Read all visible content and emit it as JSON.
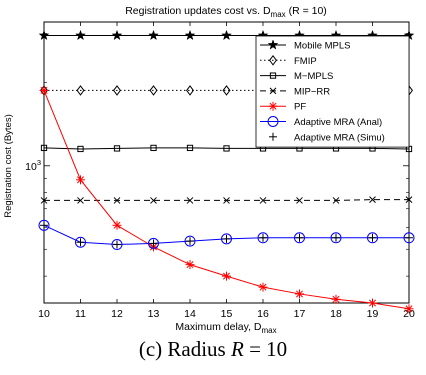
{
  "chart_data": {
    "type": "line",
    "title": "Registration updates cost vs. D",
    "title_sub": "max",
    "title_suffix": " (R = 10)",
    "xlabel": "Maximum delay, D",
    "xlabel_sub": "max",
    "ylabel": "Registration cost (Bytes)",
    "y_scale": "log",
    "y_tick_base": "10",
    "y_tick_exp": "3",
    "x": [
      10,
      11,
      12,
      13,
      14,
      15,
      16,
      17,
      18,
      19,
      20
    ],
    "x_ticks": [
      "10",
      "11",
      "12",
      "13",
      "14",
      "15",
      "16",
      "17",
      "18",
      "19",
      "20"
    ],
    "xlim": [
      10,
      20
    ],
    "ylim": [
      320,
      3300
    ],
    "legend_position": "top-right",
    "series": [
      {
        "name": "Mobile MPLS",
        "color": "#000000",
        "dash": "solid",
        "marker": "star",
        "values": [
          2950,
          2950,
          2950,
          2950,
          2950,
          2950,
          2950,
          2950,
          2950,
          2950,
          2950
        ]
      },
      {
        "name": "FMIP",
        "color": "#000000",
        "dash": "dotted",
        "marker": "diamond",
        "values": [
          1870,
          1870,
          1870,
          1870,
          1870,
          1870,
          1870,
          1870,
          1870,
          1870,
          1870
        ]
      },
      {
        "name": "M−MPLS",
        "color": "#000000",
        "dash": "solid",
        "marker": "square",
        "values": [
          1160,
          1150,
          1155,
          1160,
          1160,
          1155,
          1155,
          1155,
          1155,
          1155,
          1150
        ]
      },
      {
        "name": "MIP−RR",
        "color": "#000000",
        "dash": "dashed",
        "marker": "x",
        "values": [
          750,
          750,
          750,
          750,
          750,
          750,
          750,
          750,
          750,
          755,
          755
        ]
      },
      {
        "name": "PF",
        "color": "#ff0000",
        "dash": "solid",
        "marker": "asterisk",
        "values": [
          1870,
          890,
          610,
          510,
          440,
          400,
          365,
          345,
          330,
          320,
          305
        ]
      },
      {
        "name": "Adaptive MRA (Anal)",
        "color": "#0000ff",
        "dash": "solid",
        "marker": "circle",
        "values": [
          610,
          530,
          520,
          525,
          535,
          545,
          550,
          550,
          550,
          550,
          550
        ]
      },
      {
        "name": "Adaptive MRA (Simu)",
        "color": "#000000",
        "dash": "none",
        "marker": "plus",
        "values": [
          610,
          530,
          520,
          525,
          535,
          545,
          550,
          550,
          550,
          550,
          550
        ]
      }
    ]
  },
  "caption": {
    "prefix": "(c) Radius ",
    "var": "R",
    "suffix": " = 10"
  }
}
